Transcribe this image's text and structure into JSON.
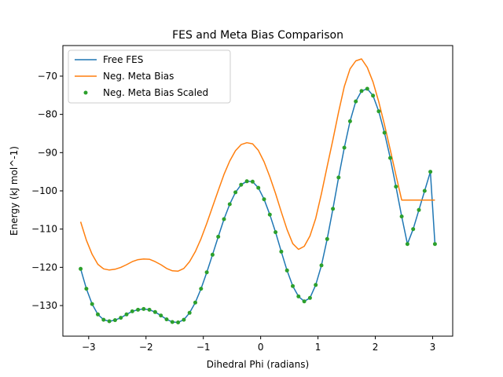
{
  "chart_data": {
    "type": "line",
    "title": "FES and Meta Bias Comparison",
    "xlabel": "Dihedral Phi (radians)",
    "ylabel": "Energy (kJ mol^-1)",
    "xlim": [
      -3.45,
      3.35
    ],
    "ylim": [
      -138.0,
      -62.0
    ],
    "xticks": [
      -3,
      -2,
      -1,
      0,
      1,
      2,
      3
    ],
    "yticks": [
      -130,
      -120,
      -110,
      -100,
      -90,
      -80,
      -70
    ],
    "grid": false,
    "legend_position": "top-left",
    "series": [
      {
        "name": "Free FES",
        "style": "line",
        "color": "#1f77b4",
        "x": [
          -3.14,
          -3.04,
          -2.94,
          -2.84,
          -2.74,
          -2.64,
          -2.54,
          -2.44,
          -2.34,
          -2.24,
          -2.14,
          -2.04,
          -1.94,
          -1.84,
          -1.74,
          -1.64,
          -1.54,
          -1.44,
          -1.34,
          -1.24,
          -1.14,
          -1.04,
          -0.94,
          -0.84,
          -0.74,
          -0.64,
          -0.54,
          -0.44,
          -0.34,
          -0.24,
          -0.14,
          -0.04,
          0.06,
          0.16,
          0.26,
          0.36,
          0.46,
          0.56,
          0.66,
          0.76,
          0.86,
          0.96,
          1.06,
          1.16,
          1.26,
          1.36,
          1.46,
          1.56,
          1.66,
          1.76,
          1.86,
          1.96,
          2.06,
          2.16,
          2.26,
          2.36,
          2.46,
          2.56,
          2.66,
          2.76,
          2.86,
          2.96,
          3.04
        ],
        "y": [
          -120.4,
          -125.6,
          -129.6,
          -132.3,
          -133.7,
          -134.1,
          -133.8,
          -133.2,
          -132.3,
          -131.5,
          -131.1,
          -130.9,
          -131.1,
          -131.7,
          -132.6,
          -133.6,
          -134.3,
          -134.4,
          -133.7,
          -131.9,
          -129.2,
          -125.6,
          -121.3,
          -116.7,
          -112.0,
          -107.4,
          -103.5,
          -100.4,
          -98.4,
          -97.5,
          -97.6,
          -99.2,
          -102.2,
          -106.2,
          -110.8,
          -115.9,
          -120.8,
          -124.9,
          -127.6,
          -128.9,
          -128.0,
          -124.6,
          -119.5,
          -112.6,
          -104.7,
          -96.5,
          -88.7,
          -81.8,
          -76.6,
          -73.9,
          -73.3,
          -75.1,
          -79.2,
          -84.8,
          -91.4,
          -98.9,
          -106.7,
          -113.9,
          -110.0,
          -105.0,
          -100.0,
          -95.0,
          -113.9
        ]
      },
      {
        "name": "Neg. Meta Bias",
        "style": "line",
        "color": "#ff7f0e",
        "x": [
          -3.14,
          -3.04,
          -2.94,
          -2.84,
          -2.74,
          -2.64,
          -2.54,
          -2.44,
          -2.34,
          -2.24,
          -2.14,
          -2.04,
          -1.94,
          -1.84,
          -1.74,
          -1.64,
          -1.54,
          -1.44,
          -1.34,
          -1.24,
          -1.14,
          -1.04,
          -0.94,
          -0.84,
          -0.74,
          -0.64,
          -0.54,
          -0.44,
          -0.34,
          -0.24,
          -0.14,
          -0.04,
          0.06,
          0.16,
          0.26,
          0.36,
          0.46,
          0.56,
          0.66,
          0.76,
          0.86,
          0.96,
          1.06,
          1.16,
          1.26,
          1.36,
          1.46,
          1.56,
          1.66,
          1.76,
          1.86,
          1.96,
          2.06,
          2.16,
          2.26,
          2.36,
          2.46,
          2.56,
          2.66,
          2.76,
          2.86,
          2.96,
          3.04
        ],
        "y": [
          -108.1,
          -112.9,
          -116.6,
          -119.2,
          -120.4,
          -120.7,
          -120.5,
          -120.0,
          -119.3,
          -118.5,
          -118.0,
          -117.8,
          -117.9,
          -118.5,
          -119.3,
          -120.3,
          -120.9,
          -121.0,
          -120.3,
          -118.5,
          -115.9,
          -112.5,
          -108.5,
          -104.2,
          -99.9,
          -95.7,
          -92.2,
          -89.5,
          -87.9,
          -87.4,
          -87.7,
          -89.4,
          -92.4,
          -96.3,
          -100.7,
          -105.5,
          -110.1,
          -113.8,
          -115.3,
          -114.5,
          -111.8,
          -107.2,
          -100.7,
          -93.6,
          -86.6,
          -79.4,
          -72.7,
          -68.1,
          -66.0,
          -65.5,
          -67.7,
          -71.5,
          -76.7,
          -82.7,
          -89.2,
          -95.9,
          -102.4,
          -102.4,
          -102.4,
          -102.4,
          -102.4,
          -102.4,
          -102.4
        ]
      },
      {
        "name": "Neg. Meta Bias Scaled",
        "style": "markers",
        "color": "#2ca02c",
        "x": [
          -3.14,
          -3.04,
          -2.94,
          -2.84,
          -2.74,
          -2.64,
          -2.54,
          -2.44,
          -2.34,
          -2.24,
          -2.14,
          -2.04,
          -1.94,
          -1.84,
          -1.74,
          -1.64,
          -1.54,
          -1.44,
          -1.34,
          -1.24,
          -1.14,
          -1.04,
          -0.94,
          -0.84,
          -0.74,
          -0.64,
          -0.54,
          -0.44,
          -0.34,
          -0.24,
          -0.14,
          -0.04,
          0.06,
          0.16,
          0.26,
          0.36,
          0.46,
          0.56,
          0.66,
          0.76,
          0.86,
          0.96,
          1.06,
          1.16,
          1.26,
          1.36,
          1.46,
          1.56,
          1.66,
          1.76,
          1.86,
          1.96,
          2.06,
          2.16,
          2.26,
          2.36,
          2.46,
          2.56,
          2.66,
          2.76,
          2.86,
          2.96,
          3.04
        ],
        "y": [
          -120.4,
          -125.6,
          -129.6,
          -132.3,
          -133.7,
          -134.1,
          -133.8,
          -133.2,
          -132.3,
          -131.5,
          -131.1,
          -130.9,
          -131.1,
          -131.7,
          -132.6,
          -133.6,
          -134.3,
          -134.4,
          -133.7,
          -131.9,
          -129.2,
          -125.6,
          -121.3,
          -116.7,
          -112.0,
          -107.4,
          -103.5,
          -100.4,
          -98.4,
          -97.5,
          -97.6,
          -99.2,
          -102.2,
          -106.2,
          -110.8,
          -115.9,
          -120.8,
          -124.9,
          -127.6,
          -128.9,
          -128.0,
          -124.6,
          -119.5,
          -112.6,
          -104.7,
          -96.5,
          -88.7,
          -81.8,
          -76.6,
          -73.9,
          -73.3,
          -75.1,
          -79.2,
          -84.8,
          -91.4,
          -98.9,
          -106.7,
          -113.9,
          -110.0,
          -105.0,
          -100.0,
          -95.0,
          -113.9
        ]
      }
    ]
  }
}
